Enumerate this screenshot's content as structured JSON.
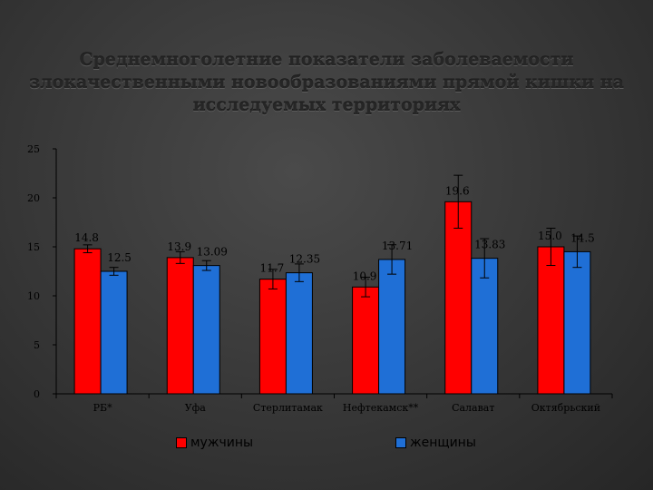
{
  "title": "Среднемноголетние показатели заболеваемости злокачественными новообразованиями прямой кишки на исследуемых территориях",
  "colors": {
    "men": "#ff0000",
    "women": "#1f6fd6"
  },
  "chart_data": {
    "type": "bar",
    "categories": [
      "РБ*",
      "Уфа",
      "Стерлитамак",
      "Нефтекамск**",
      "Салават",
      "Октябрьский"
    ],
    "series": [
      {
        "name": "мужчины",
        "values": [
          14.8,
          13.9,
          11.7,
          10.9,
          19.6,
          15.0
        ],
        "labels": [
          "14.8",
          "13.9",
          "11.7",
          "10.9",
          "19.6",
          "15.0"
        ],
        "err": [
          0.4,
          0.6,
          1.0,
          1.0,
          2.7,
          1.9
        ]
      },
      {
        "name": "женщины",
        "values": [
          12.5,
          13.09,
          12.35,
          13.71,
          13.83,
          14.5
        ],
        "labels": [
          "12.5",
          "13.09",
          "12.35",
          "13.71",
          "13.83",
          "14.5"
        ],
        "err": [
          0.4,
          0.5,
          0.9,
          1.5,
          2.0,
          1.6
        ]
      }
    ],
    "yticks": [
      "0",
      "5",
      "10",
      "15",
      "20",
      "25"
    ],
    "ylim": [
      0,
      25
    ],
    "xlabel": "",
    "ylabel": "",
    "grid": false,
    "legend": "bottom",
    "error_bars": true
  }
}
